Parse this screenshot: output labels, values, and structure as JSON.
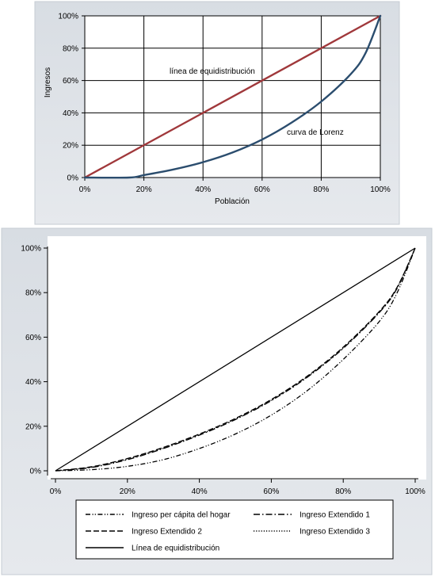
{
  "chart_data": [
    {
      "type": "line",
      "title": "",
      "xlabel": "Población",
      "ylabel": "Ingresos",
      "xlim": [
        0,
        100
      ],
      "ylim": [
        0,
        100
      ],
      "xticks": [
        "0%",
        "20%",
        "40%",
        "60%",
        "80%",
        "100%"
      ],
      "yticks": [
        "0%",
        "20%",
        "40%",
        "60%",
        "80%",
        "100%"
      ],
      "grid": true,
      "annotations": [
        {
          "text": "línea de equidistribución",
          "x": 62,
          "y": 66
        },
        {
          "text": "curva de Lorenz",
          "x": 79,
          "y": 27
        }
      ],
      "series": [
        {
          "name": "línea de equidistribución",
          "color": "#a0383b",
          "x": [
            0,
            100
          ],
          "y": [
            0,
            100
          ]
        },
        {
          "name": "curva de Lorenz",
          "color": "#2b4d6e",
          "x": [
            0,
            15,
            20,
            30,
            40,
            50,
            60,
            70,
            80,
            90,
            95,
            100
          ],
          "y": [
            0,
            0,
            1.5,
            5,
            9.5,
            15.5,
            23.5,
            34,
            47,
            64,
            77,
            100
          ]
        }
      ],
      "colors": {
        "equidistribution": "#a0383b",
        "lorenz": "#2b4d6e",
        "grid": "#000000",
        "frame": "#d8dde3"
      }
    },
    {
      "type": "line",
      "title": "",
      "xlabel": "",
      "ylabel": "",
      "xlim": [
        0,
        100
      ],
      "ylim": [
        0,
        100
      ],
      "xticks": [
        "0%",
        "20%",
        "40%",
        "60%",
        "80%",
        "100%"
      ],
      "yticks": [
        "0%",
        "20%",
        "40%",
        "60%",
        "80%",
        "100%"
      ],
      "grid": false,
      "legend_position": "bottom",
      "series": [
        {
          "name": "Ingreso per cápita del hogar",
          "dash": "dash-dot-dot",
          "x": [
            0,
            10,
            20,
            30,
            40,
            50,
            60,
            70,
            80,
            90,
            95,
            100
          ],
          "y": [
            0,
            0.5,
            2,
            5,
            10,
            16.5,
            25,
            36,
            50,
            67,
            80,
            100
          ]
        },
        {
          "name": "Ingreso Extendido 1",
          "dash": "dash-dot",
          "x": [
            0,
            10,
            20,
            30,
            40,
            50,
            60,
            70,
            80,
            90,
            95,
            100
          ],
          "y": [
            0,
            1.5,
            5,
            10,
            16,
            23,
            31.5,
            42,
            55,
            71,
            82,
            100
          ]
        },
        {
          "name": "Ingreso Extendido 2",
          "dash": "dashed",
          "x": [
            0,
            10,
            20,
            30,
            40,
            50,
            60,
            70,
            80,
            90,
            95,
            100
          ],
          "y": [
            0,
            1.8,
            5.5,
            10.5,
            16.5,
            23.5,
            32,
            42.5,
            55.5,
            71.5,
            82.5,
            100
          ]
        },
        {
          "name": "Ingreso Extendido 3",
          "dash": "dotted",
          "x": [
            0,
            10,
            20,
            30,
            40,
            50,
            60,
            70,
            80,
            90,
            95,
            100
          ],
          "y": [
            0,
            1.6,
            5.2,
            10.2,
            16.2,
            23.2,
            31.7,
            42.2,
            55.2,
            71.2,
            82.2,
            100
          ]
        },
        {
          "name": "Línea de equidistribución",
          "dash": "solid",
          "x": [
            0,
            100
          ],
          "y": [
            0,
            100
          ]
        }
      ]
    }
  ]
}
